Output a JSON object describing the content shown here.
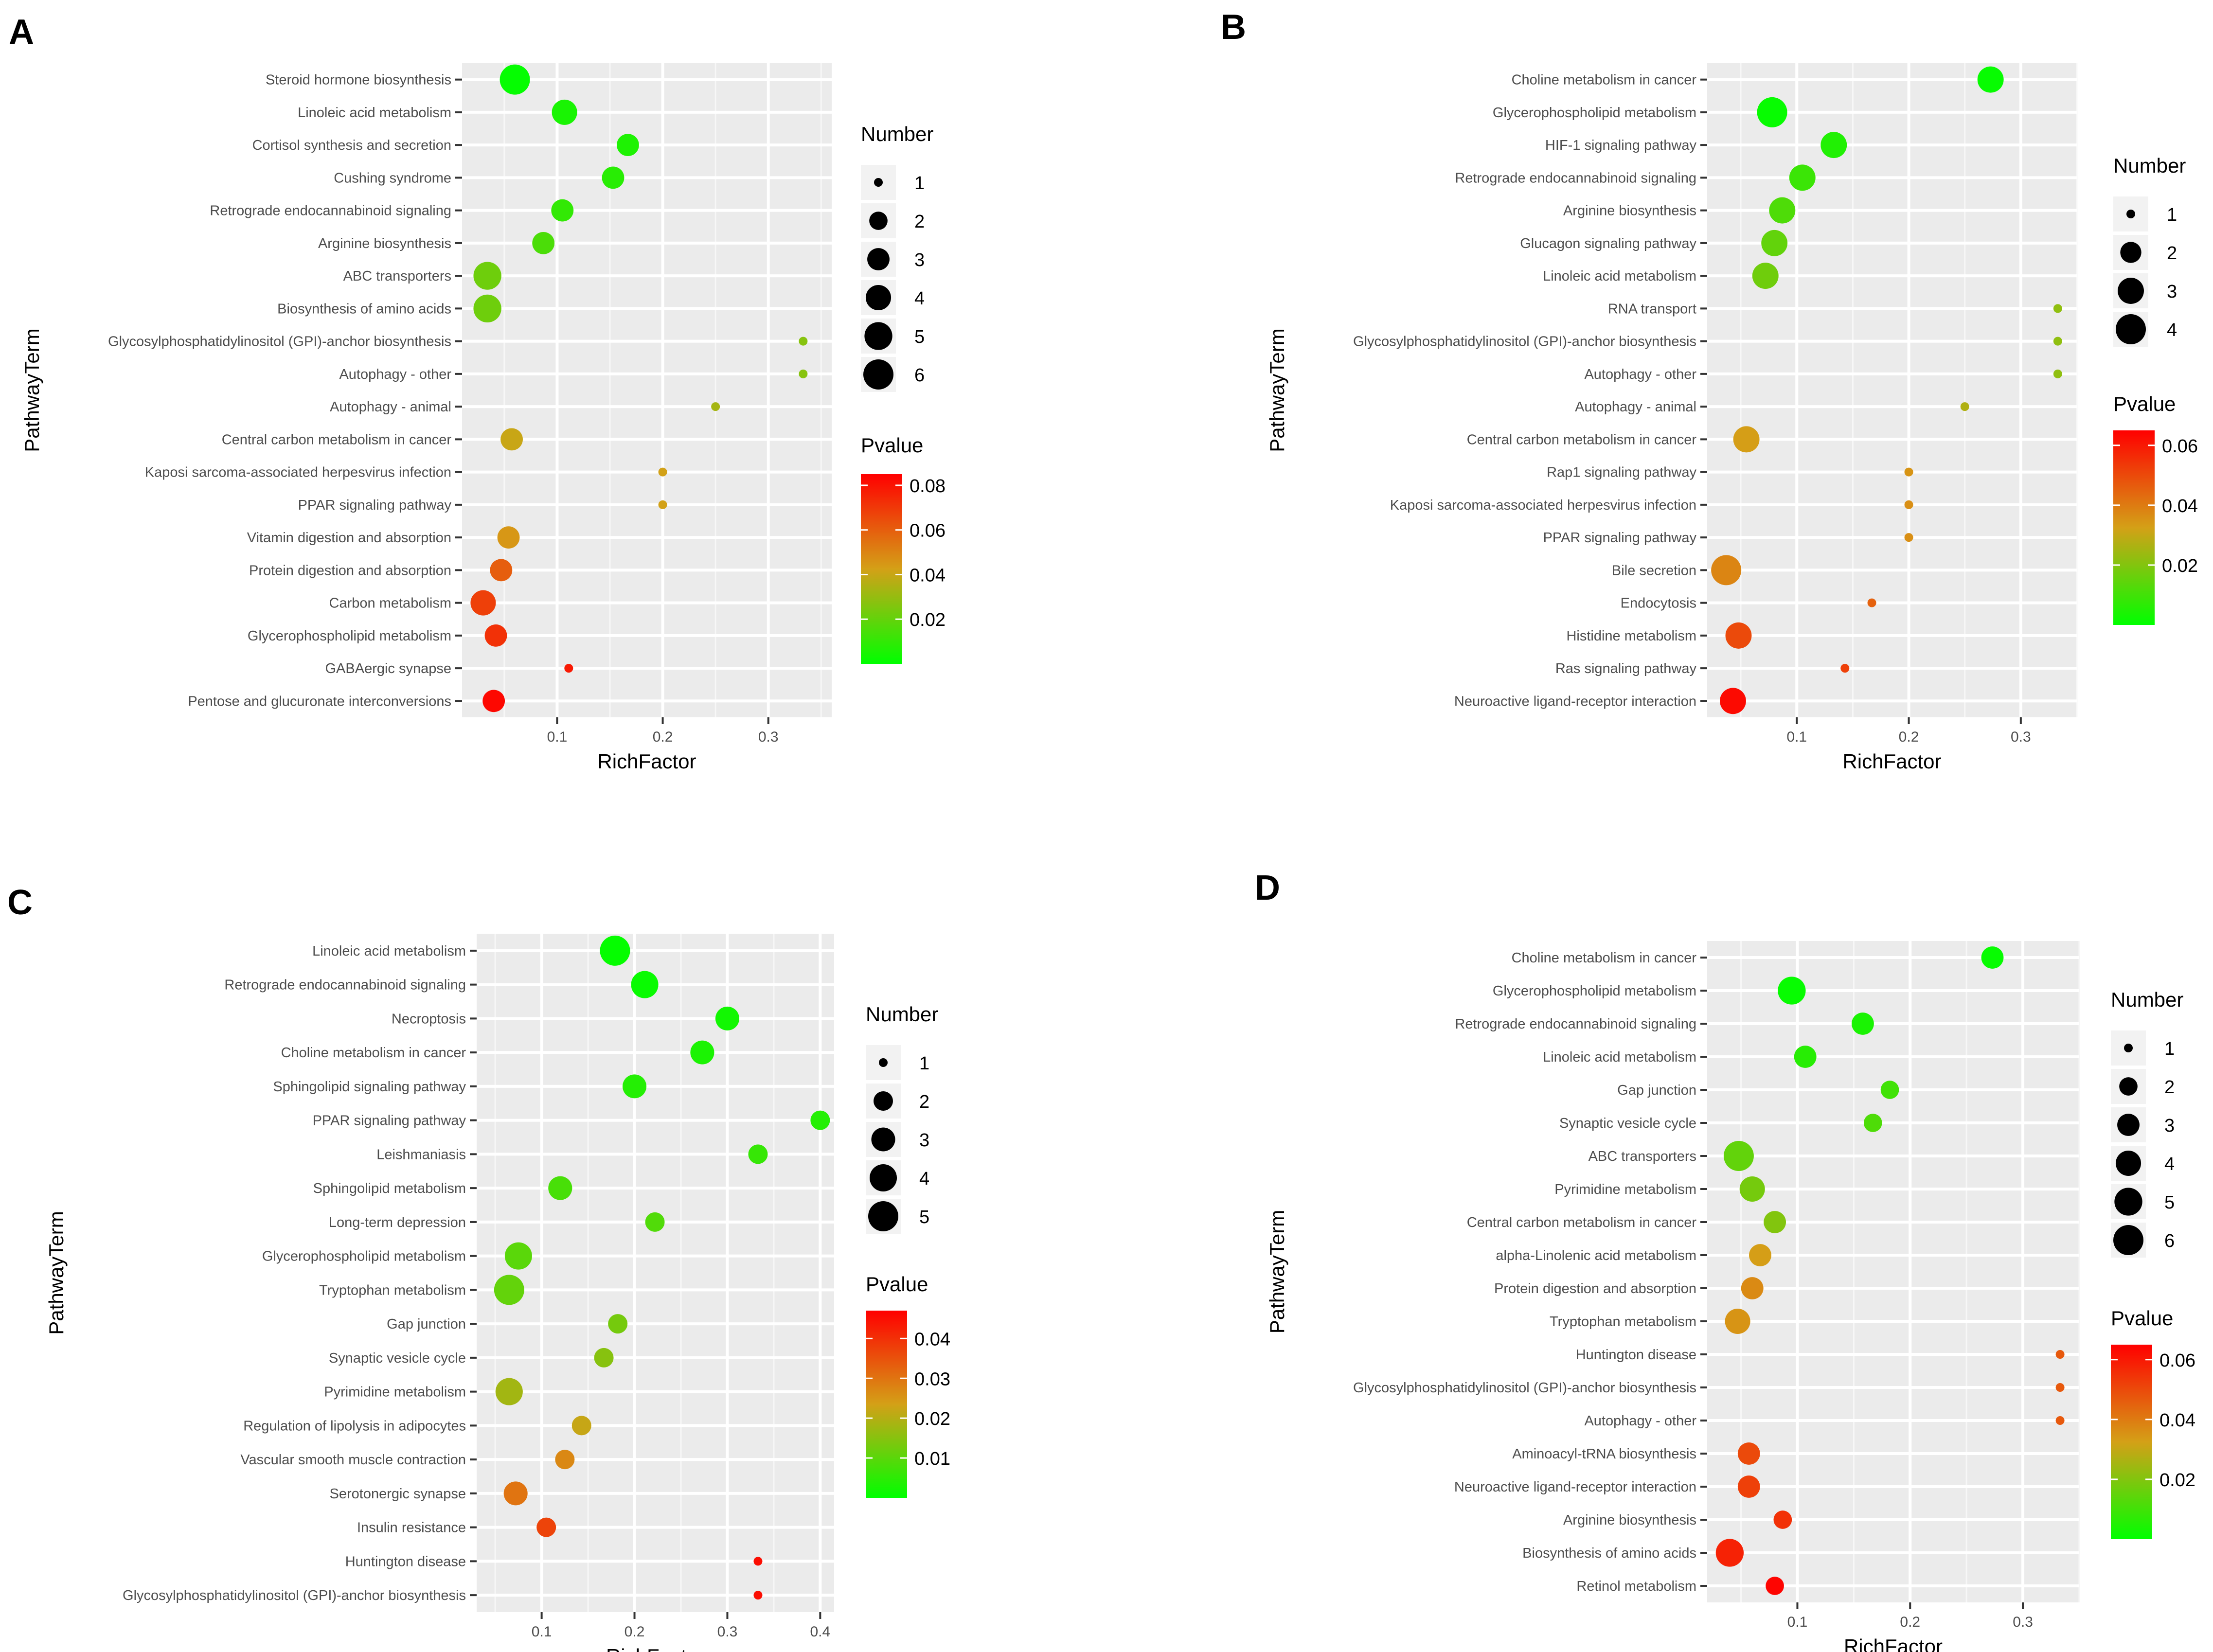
{
  "chart_data": [
    {
      "label": "A",
      "type": "scatter",
      "xlabel": "RichFactor",
      "ylabel": "PathwayTerm",
      "xlim": [
        0.01,
        0.36
      ],
      "xticks": [
        "0.1",
        "0.2",
        "0.3"
      ],
      "xtick_values": [
        0.1,
        0.2,
        0.3
      ],
      "size_legend_title": "Number",
      "size_legend": [
        1,
        2,
        3,
        4,
        5,
        6
      ],
      "size_max": 6,
      "color_legend_title": "Pvalue",
      "color_legend_ticks": [
        "0.08",
        "0.06",
        "0.04",
        "0.02"
      ],
      "color_legend_values": [
        0.08,
        0.06,
        0.04,
        0.02
      ],
      "color_range": [
        0.0,
        0.085
      ],
      "colors": {
        "low": "#00ff00",
        "mid": "#d4a017",
        "high": "#ff0000"
      },
      "points": [
        {
          "term": "Steroid hormone biosynthesis",
          "x": 0.06,
          "number": 6,
          "p": 0.001
        },
        {
          "term": "Linoleic acid metabolism",
          "x": 0.107,
          "number": 4,
          "p": 0.005
        },
        {
          "term": "Cortisol synthesis and secretion",
          "x": 0.167,
          "number": 3,
          "p": 0.006
        },
        {
          "term": "Cushing syndrome",
          "x": 0.153,
          "number": 3,
          "p": 0.008
        },
        {
          "term": "Retrograde endocannabinoid signaling",
          "x": 0.105,
          "number": 3,
          "p": 0.01
        },
        {
          "term": "Arginine biosynthesis",
          "x": 0.087,
          "number": 3,
          "p": 0.015
        },
        {
          "term": "ABC transporters",
          "x": 0.034,
          "number": 5,
          "p": 0.022
        },
        {
          "term": "Biosynthesis of amino acids",
          "x": 0.034,
          "number": 5,
          "p": 0.022
        },
        {
          "term": "Glycosylphosphatidylinositol (GPI)-anchor biosynthesis",
          "x": 0.333,
          "number": 1,
          "p": 0.027
        },
        {
          "term": "Autophagy - other",
          "x": 0.333,
          "number": 1,
          "p": 0.027
        },
        {
          "term": "Autophagy - animal",
          "x": 0.25,
          "number": 1,
          "p": 0.033
        },
        {
          "term": "Central carbon metabolism in cancer",
          "x": 0.057,
          "number": 3,
          "p": 0.04
        },
        {
          "term": "Kaposi sarcoma-associated herpesvirus infection",
          "x": 0.2,
          "number": 1,
          "p": 0.042
        },
        {
          "term": "PPAR signaling pathway",
          "x": 0.2,
          "number": 1,
          "p": 0.042
        },
        {
          "term": "Vitamin digestion and absorption",
          "x": 0.054,
          "number": 3,
          "p": 0.045
        },
        {
          "term": "Protein digestion and absorption",
          "x": 0.047,
          "number": 3,
          "p": 0.06
        },
        {
          "term": "Carbon metabolism",
          "x": 0.03,
          "number": 4,
          "p": 0.068
        },
        {
          "term": "Glycerophospholipid metabolism",
          "x": 0.042,
          "number": 3,
          "p": 0.072
        },
        {
          "term": "GABAergic synapse",
          "x": 0.111,
          "number": 1,
          "p": 0.078
        },
        {
          "term": "Pentose and glucuronate interconversions",
          "x": 0.04,
          "number": 3,
          "p": 0.083
        }
      ]
    },
    {
      "label": "B",
      "type": "scatter",
      "xlabel": "RichFactor",
      "ylabel": "PathwayTerm",
      "xlim": [
        0.02,
        0.35
      ],
      "xticks": [
        "0.1",
        "0.2",
        "0.3"
      ],
      "xtick_values": [
        0.1,
        0.2,
        0.3
      ],
      "size_legend_title": "Number",
      "size_legend": [
        1,
        2,
        3,
        4
      ],
      "size_max": 4,
      "color_legend_title": "Pvalue",
      "color_legend_ticks": [
        "0.06",
        "0.04",
        "0.02"
      ],
      "color_legend_values": [
        0.06,
        0.04,
        0.02
      ],
      "color_range": [
        0.0,
        0.065
      ],
      "colors": {
        "low": "#00ff00",
        "mid": "#d4a017",
        "high": "#ff0000"
      },
      "points": [
        {
          "term": "Choline metabolism in cancer",
          "x": 0.273,
          "number": 3,
          "p": 0.001
        },
        {
          "term": "Glycerophospholipid metabolism",
          "x": 0.078,
          "number": 4,
          "p": 0.001
        },
        {
          "term": "HIF-1 signaling pathway",
          "x": 0.133,
          "number": 3,
          "p": 0.005
        },
        {
          "term": "Retrograde endocannabinoid signaling",
          "x": 0.105,
          "number": 3,
          "p": 0.009
        },
        {
          "term": "Arginine biosynthesis",
          "x": 0.087,
          "number": 3,
          "p": 0.012
        },
        {
          "term": "Glucagon signaling pathway",
          "x": 0.08,
          "number": 3,
          "p": 0.015
        },
        {
          "term": "Linoleic acid metabolism",
          "x": 0.072,
          "number": 3,
          "p": 0.017
        },
        {
          "term": "RNA transport",
          "x": 0.333,
          "number": 1,
          "p": 0.022
        },
        {
          "term": "Glycosylphosphatidylinositol (GPI)-anchor biosynthesis",
          "x": 0.333,
          "number": 1,
          "p": 0.022
        },
        {
          "term": "Autophagy - other",
          "x": 0.333,
          "number": 1,
          "p": 0.022
        },
        {
          "term": "Autophagy - animal",
          "x": 0.25,
          "number": 1,
          "p": 0.027
        },
        {
          "term": "Central carbon metabolism in cancer",
          "x": 0.055,
          "number": 3,
          "p": 0.033
        },
        {
          "term": "Rap1 signaling pathway",
          "x": 0.2,
          "number": 1,
          "p": 0.035
        },
        {
          "term": "Kaposi sarcoma-associated herpesvirus infection",
          "x": 0.2,
          "number": 1,
          "p": 0.036
        },
        {
          "term": "PPAR signaling pathway",
          "x": 0.2,
          "number": 1,
          "p": 0.036
        },
        {
          "term": "Bile secretion",
          "x": 0.037,
          "number": 4,
          "p": 0.038
        },
        {
          "term": "Endocytosis",
          "x": 0.167,
          "number": 1,
          "p": 0.045
        },
        {
          "term": "Histidine metabolism",
          "x": 0.048,
          "number": 3,
          "p": 0.05
        },
        {
          "term": "Ras signaling pathway",
          "x": 0.143,
          "number": 1,
          "p": 0.052
        },
        {
          "term": "Neuroactive ligand-receptor interaction",
          "x": 0.043,
          "number": 3,
          "p": 0.063
        }
      ]
    },
    {
      "label": "C",
      "type": "scatter",
      "xlabel": "RichFactor",
      "ylabel": "PathwayTerm",
      "xlim": [
        0.03,
        0.415
      ],
      "xticks": [
        "0.1",
        "0.2",
        "0.3",
        "0.4"
      ],
      "xtick_values": [
        0.1,
        0.2,
        0.3,
        0.4
      ],
      "size_legend_title": "Number",
      "size_legend": [
        1,
        2,
        3,
        4,
        5
      ],
      "size_max": 5,
      "color_legend_title": "Pvalue",
      "color_legend_ticks": [
        "0.04",
        "0.03",
        "0.02",
        "0.01"
      ],
      "color_legend_values": [
        0.04,
        0.03,
        0.02,
        0.01
      ],
      "color_range": [
        0.0,
        0.047
      ],
      "colors": {
        "low": "#00ff00",
        "mid": "#d4a017",
        "high": "#ff0000"
      },
      "points": [
        {
          "term": "Linoleic acid metabolism",
          "x": 0.179,
          "number": 5,
          "p": 0.0005
        },
        {
          "term": "Retrograde endocannabinoid signaling",
          "x": 0.211,
          "number": 4,
          "p": 0.001
        },
        {
          "term": "Necroptosis",
          "x": 0.3,
          "number": 3,
          "p": 0.002
        },
        {
          "term": "Choline metabolism in cancer",
          "x": 0.273,
          "number": 3,
          "p": 0.003
        },
        {
          "term": "Sphingolipid signaling pathway",
          "x": 0.2,
          "number": 3,
          "p": 0.004
        },
        {
          "term": "PPAR signaling pathway",
          "x": 0.4,
          "number": 2,
          "p": 0.004
        },
        {
          "term": "Leishmaniasis",
          "x": 0.333,
          "number": 2,
          "p": 0.006
        },
        {
          "term": "Sphingolipid metabolism",
          "x": 0.12,
          "number": 3,
          "p": 0.008
        },
        {
          "term": "Long-term depression",
          "x": 0.222,
          "number": 2,
          "p": 0.009
        },
        {
          "term": "Glycerophospholipid metabolism",
          "x": 0.075,
          "number": 4,
          "p": 0.01
        },
        {
          "term": "Tryptophan metabolism",
          "x": 0.065,
          "number": 5,
          "p": 0.011
        },
        {
          "term": "Gap junction",
          "x": 0.182,
          "number": 2,
          "p": 0.013
        },
        {
          "term": "Synaptic vesicle cycle",
          "x": 0.167,
          "number": 2,
          "p": 0.015
        },
        {
          "term": "Pyrimidine metabolism",
          "x": 0.065,
          "number": 4,
          "p": 0.018
        },
        {
          "term": "Regulation of lipolysis in adipocytes",
          "x": 0.143,
          "number": 2,
          "p": 0.022
        },
        {
          "term": "Vascular smooth muscle contraction",
          "x": 0.125,
          "number": 2,
          "p": 0.027
        },
        {
          "term": "Serotonergic synapse",
          "x": 0.072,
          "number": 3,
          "p": 0.03
        },
        {
          "term": "Insulin resistance",
          "x": 0.105,
          "number": 2,
          "p": 0.037
        },
        {
          "term": "Huntington disease",
          "x": 0.333,
          "number": 1,
          "p": 0.045
        },
        {
          "term": "Glycosylphosphatidylinositol (GPI)-anchor biosynthesis",
          "x": 0.333,
          "number": 1,
          "p": 0.045
        }
      ]
    },
    {
      "label": "D",
      "type": "scatter",
      "xlabel": "RichFactor",
      "ylabel": "PathwayTerm",
      "xlim": [
        0.02,
        0.35
      ],
      "xticks": [
        "0.1",
        "0.2",
        "0.3"
      ],
      "xtick_values": [
        0.1,
        0.2,
        0.3
      ],
      "size_legend_title": "Number",
      "size_legend": [
        1,
        2,
        3,
        4,
        5,
        6
      ],
      "size_max": 6,
      "color_legend_title": "Pvalue",
      "color_legend_ticks": [
        "0.06",
        "0.04",
        "0.02"
      ],
      "color_legend_values": [
        0.06,
        0.04,
        0.02
      ],
      "color_range": [
        0.0,
        0.065
      ],
      "colors": {
        "low": "#00ff00",
        "mid": "#d4a017",
        "high": "#ff0000"
      },
      "points": [
        {
          "term": "Choline metabolism in cancer",
          "x": 0.273,
          "number": 3,
          "p": 0.001
        },
        {
          "term": "Glycerophospholipid metabolism",
          "x": 0.095,
          "number": 5,
          "p": 0.001
        },
        {
          "term": "Retrograde endocannabinoid signaling",
          "x": 0.158,
          "number": 3,
          "p": 0.004
        },
        {
          "term": "Linoleic acid metabolism",
          "x": 0.107,
          "number": 3,
          "p": 0.006
        },
        {
          "term": "Gap junction",
          "x": 0.182,
          "number": 2,
          "p": 0.01
        },
        {
          "term": "Synaptic vesicle cycle",
          "x": 0.167,
          "number": 2,
          "p": 0.012
        },
        {
          "term": "ABC transporters",
          "x": 0.048,
          "number": 6,
          "p": 0.015
        },
        {
          "term": "Pyrimidine metabolism",
          "x": 0.06,
          "number": 4,
          "p": 0.018
        },
        {
          "term": "Central carbon metabolism in cancer",
          "x": 0.08,
          "number": 3,
          "p": 0.02
        },
        {
          "term": "alpha-Linolenic acid metabolism",
          "x": 0.067,
          "number": 3,
          "p": 0.033
        },
        {
          "term": "Protein digestion and absorption",
          "x": 0.06,
          "number": 3,
          "p": 0.037
        },
        {
          "term": "Tryptophan metabolism",
          "x": 0.047,
          "number": 4,
          "p": 0.035
        },
        {
          "term": "Huntington disease",
          "x": 0.333,
          "number": 1,
          "p": 0.047
        },
        {
          "term": "Glycosylphosphatidylinositol (GPI)-anchor biosynthesis",
          "x": 0.333,
          "number": 1,
          "p": 0.047
        },
        {
          "term": "Autophagy - other",
          "x": 0.333,
          "number": 1,
          "p": 0.047
        },
        {
          "term": "Aminoacyl-tRNA biosynthesis",
          "x": 0.057,
          "number": 3,
          "p": 0.05
        },
        {
          "term": "Neuroactive ligand-receptor interaction",
          "x": 0.057,
          "number": 3,
          "p": 0.052
        },
        {
          "term": "Arginine biosynthesis",
          "x": 0.087,
          "number": 2,
          "p": 0.055
        },
        {
          "term": "Biosynthesis of amino acids",
          "x": 0.04,
          "number": 5,
          "p": 0.058
        },
        {
          "term": "Retinol metabolism",
          "x": 0.08,
          "number": 2,
          "p": 0.064
        }
      ]
    }
  ]
}
